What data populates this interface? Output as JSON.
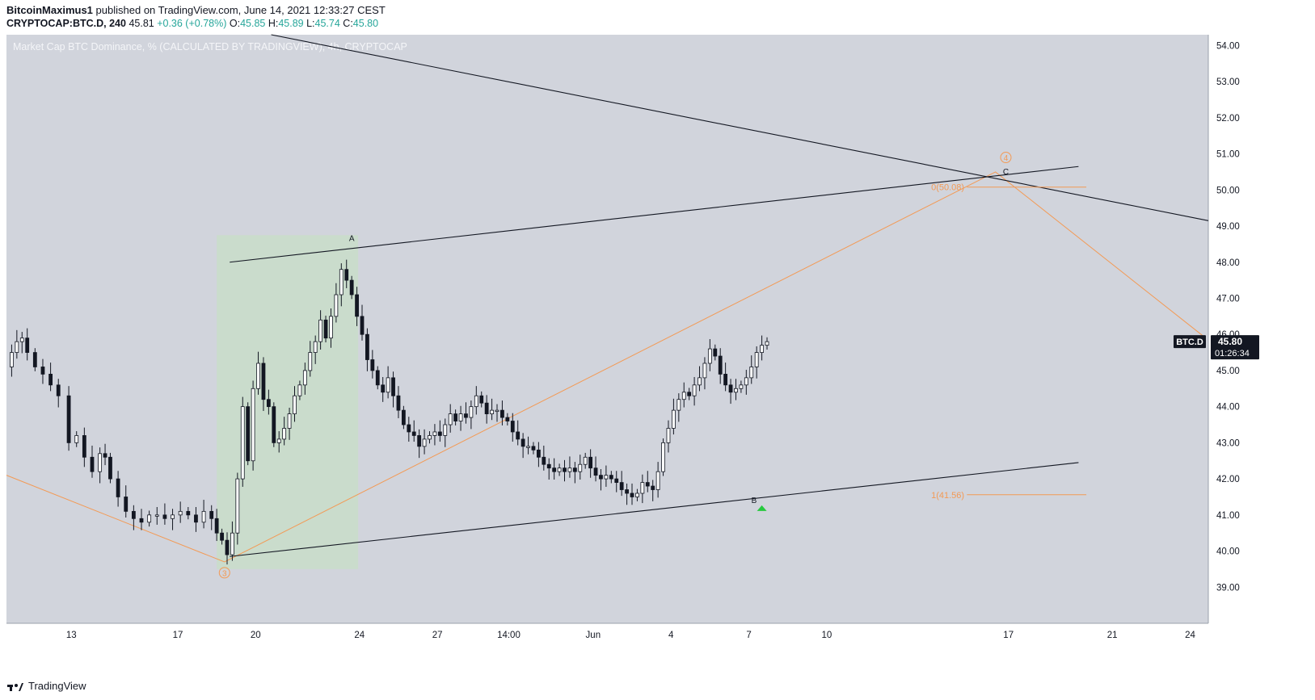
{
  "header": {
    "author": "BitcoinMaximus1",
    "published_text": "published on TradingView.com, June 14, 2021 12:33:27 CEST",
    "symbol": "CRYPTOCAP:BTC.D, 240",
    "last": "45.81",
    "change": "+0.36 (+0.78%)",
    "o_label": "O:",
    "o_value": "45.85",
    "h_label": "H:",
    "h_value": "45.89",
    "l_label": "L:",
    "l_value": "45.74",
    "c_label": "C:",
    "c_value": "45.80"
  },
  "footer": {
    "brand": "TradingView"
  },
  "colors": {
    "background": "#d1d4dc",
    "candle": "#131722",
    "wave_line": "#f39a55",
    "highlight_box": "#c9ddc9",
    "price_tag_bg": "#131722",
    "buy_marker": "#26c93e"
  },
  "chart_data": {
    "type": "candlestick",
    "title": "Market Cap BTC Dominance, % (CALCULATED BY TRADINGVIEW), 4h, CRYPTOCAP",
    "y_range": [
      38,
      54.3
    ],
    "y_ticks": [
      "54.00",
      "53.00",
      "52.00",
      "51.00",
      "50.00",
      "49.00",
      "48.00",
      "47.00",
      "46.00",
      "45.00",
      "44.00",
      "43.00",
      "42.00",
      "41.00",
      "40.00",
      "39.00"
    ],
    "x_ticks": [
      {
        "day": 12.9,
        "label": "13"
      },
      {
        "day": 17,
        "label": "17"
      },
      {
        "day": 20,
        "label": "20"
      },
      {
        "day": 24,
        "label": "24"
      },
      {
        "day": 27,
        "label": "27"
      },
      {
        "day": 29.75,
        "label": "14:00"
      },
      {
        "day": 33,
        "label": "Jun"
      },
      {
        "day": 36,
        "label": "4"
      },
      {
        "day": 39,
        "label": "7"
      },
      {
        "day": 42,
        "label": "10"
      },
      {
        "day": 49,
        "label": "17"
      },
      {
        "day": 53,
        "label": "21"
      },
      {
        "day": 56,
        "label": "24"
      }
    ],
    "x_range_days": [
      10.4,
      56.7
    ],
    "price_path": [
      [
        10.4,
        45.1
      ],
      [
        10.6,
        45.5
      ],
      [
        10.8,
        45.8
      ],
      [
        11.0,
        45.9
      ],
      [
        11.2,
        45.5
      ],
      [
        11.5,
        45.1
      ],
      [
        11.8,
        44.9
      ],
      [
        12.1,
        44.6
      ],
      [
        12.4,
        44.3
      ],
      [
        12.8,
        43.0
      ],
      [
        13.1,
        43.2
      ],
      [
        13.4,
        42.6
      ],
      [
        13.7,
        42.2
      ],
      [
        14.0,
        42.7
      ],
      [
        14.2,
        42.6
      ],
      [
        14.4,
        42.0
      ],
      [
        14.7,
        41.5
      ],
      [
        15.0,
        41.1
      ],
      [
        15.3,
        40.9
      ],
      [
        15.6,
        40.8
      ],
      [
        15.9,
        41.0
      ],
      [
        16.2,
        41.0
      ],
      [
        16.5,
        40.9
      ],
      [
        16.8,
        41.0
      ],
      [
        17.1,
        41.1
      ],
      [
        17.4,
        41.0
      ],
      [
        17.7,
        40.8
      ],
      [
        18.0,
        41.1
      ],
      [
        18.3,
        40.9
      ],
      [
        18.5,
        40.5
      ],
      [
        18.7,
        40.3
      ],
      [
        18.9,
        39.9
      ],
      [
        19.1,
        40.5
      ],
      [
        19.3,
        42.0
      ],
      [
        19.5,
        44.0
      ],
      [
        19.7,
        42.5
      ],
      [
        19.9,
        44.5
      ],
      [
        20.1,
        45.2
      ],
      [
        20.3,
        44.2
      ],
      [
        20.5,
        44.0
      ],
      [
        20.7,
        43.0
      ],
      [
        20.9,
        43.1
      ],
      [
        21.1,
        43.4
      ],
      [
        21.3,
        43.8
      ],
      [
        21.5,
        44.3
      ],
      [
        21.7,
        44.6
      ],
      [
        21.9,
        45.0
      ],
      [
        22.1,
        45.5
      ],
      [
        22.3,
        45.8
      ],
      [
        22.5,
        46.4
      ],
      [
        22.7,
        45.9
      ],
      [
        22.9,
        46.5
      ],
      [
        23.1,
        47.1
      ],
      [
        23.3,
        47.8
      ],
      [
        23.5,
        47.5
      ],
      [
        23.7,
        47.1
      ],
      [
        23.9,
        46.5
      ],
      [
        24.1,
        46.0
      ],
      [
        24.3,
        45.3
      ],
      [
        24.5,
        45.0
      ],
      [
        24.7,
        44.6
      ],
      [
        24.9,
        44.4
      ],
      [
        25.1,
        44.8
      ],
      [
        25.3,
        44.3
      ],
      [
        25.5,
        43.9
      ],
      [
        25.7,
        43.5
      ],
      [
        25.9,
        43.3
      ],
      [
        26.1,
        43.2
      ],
      [
        26.3,
        42.9
      ],
      [
        26.5,
        43.1
      ],
      [
        26.7,
        43.2
      ],
      [
        26.9,
        43.3
      ],
      [
        27.1,
        43.2
      ],
      [
        27.3,
        43.5
      ],
      [
        27.5,
        43.8
      ],
      [
        27.7,
        43.6
      ],
      [
        27.9,
        43.8
      ],
      [
        28.1,
        43.7
      ],
      [
        28.3,
        44.0
      ],
      [
        28.5,
        44.3
      ],
      [
        28.7,
        44.1
      ],
      [
        28.9,
        43.8
      ],
      [
        29.1,
        43.9
      ],
      [
        29.3,
        43.9
      ],
      [
        29.5,
        43.7
      ],
      [
        29.7,
        43.6
      ],
      [
        29.9,
        43.3
      ],
      [
        30.1,
        43.1
      ],
      [
        30.3,
        42.9
      ],
      [
        30.5,
        42.9
      ],
      [
        30.7,
        42.8
      ],
      [
        30.9,
        42.6
      ],
      [
        31.1,
        42.4
      ],
      [
        31.3,
        42.3
      ],
      [
        31.5,
        42.2
      ],
      [
        31.7,
        42.3
      ],
      [
        31.9,
        42.2
      ],
      [
        32.1,
        42.3
      ],
      [
        32.3,
        42.2
      ],
      [
        32.5,
        42.4
      ],
      [
        32.7,
        42.6
      ],
      [
        32.9,
        42.3
      ],
      [
        33.1,
        42.1
      ],
      [
        33.3,
        42.0
      ],
      [
        33.5,
        42.1
      ],
      [
        33.7,
        42.0
      ],
      [
        33.9,
        41.9
      ],
      [
        34.1,
        41.7
      ],
      [
        34.3,
        41.6
      ],
      [
        34.5,
        41.5
      ],
      [
        34.7,
        41.6
      ],
      [
        34.9,
        41.9
      ],
      [
        35.1,
        41.8
      ],
      [
        35.3,
        41.7
      ],
      [
        35.5,
        42.2
      ],
      [
        35.7,
        43.0
      ],
      [
        35.9,
        43.4
      ],
      [
        36.1,
        43.9
      ],
      [
        36.3,
        44.2
      ],
      [
        36.5,
        44.4
      ],
      [
        36.7,
        44.3
      ],
      [
        36.9,
        44.6
      ],
      [
        37.1,
        44.8
      ],
      [
        37.3,
        45.2
      ],
      [
        37.5,
        45.6
      ],
      [
        37.7,
        45.4
      ],
      [
        37.9,
        44.9
      ],
      [
        38.1,
        44.6
      ],
      [
        38.3,
        44.4
      ],
      [
        38.5,
        44.5
      ],
      [
        38.7,
        44.6
      ],
      [
        38.9,
        44.8
      ],
      [
        39.1,
        45.1
      ],
      [
        39.3,
        45.5
      ],
      [
        39.5,
        45.7
      ],
      [
        39.7,
        45.8
      ]
    ],
    "annotations": [
      {
        "label": "A",
        "day": 23.7,
        "value": 48.45
      },
      {
        "label": "B",
        "day": 39.2,
        "value": 41.2
      },
      {
        "label": "C",
        "day": 48.9,
        "value": 50.3
      }
    ],
    "wave_labels": [
      {
        "label": "3",
        "day": 18.8,
        "value": 39.4
      },
      {
        "label": "4",
        "day": 48.9,
        "value": 50.9
      }
    ],
    "fib_levels": [
      {
        "label": "0(50.08)",
        "value": 50.08
      },
      {
        "label": "1(41.56)",
        "value": 41.56
      }
    ],
    "last_price": {
      "symbol": "BTC.D",
      "value": "45.80",
      "countdown": "01:26:34"
    }
  }
}
